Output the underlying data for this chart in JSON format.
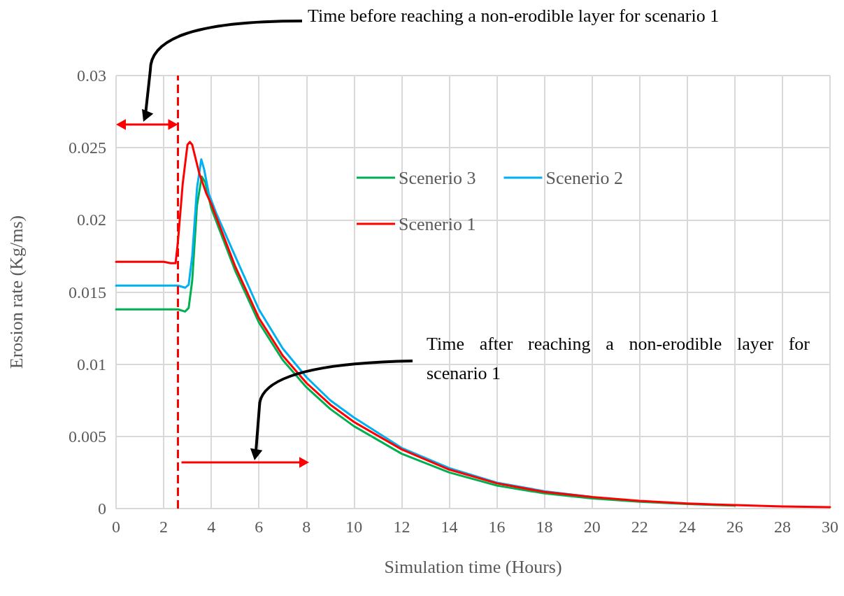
{
  "chart_data": {
    "type": "line",
    "xlabel": "Simulation time (Hours)",
    "ylabel": "Erosion rate (Kg/ms)",
    "xlim": [
      0,
      30
    ],
    "xticks": [
      0,
      2,
      4,
      6,
      8,
      10,
      12,
      14,
      16,
      18,
      20,
      22,
      24,
      26,
      28,
      30
    ],
    "ylim": [
      0,
      0.03
    ],
    "yticks": [
      0,
      0.005,
      0.01,
      0.015,
      0.02,
      0.025,
      0.03
    ],
    "grid": true,
    "legend": "top",
    "marker": "none",
    "line_style": "solid",
    "series": [
      {
        "name": "Scenerio 3",
        "color": "#00b050",
        "x": [
          0,
          2.6,
          2.9,
          3.05,
          3.2,
          3.4,
          3.6,
          3.75,
          4,
          5,
          6,
          7,
          8,
          9,
          10,
          12,
          14,
          16,
          18,
          20,
          22,
          24,
          26
        ],
        "values": [
          0.0138,
          0.0138,
          0.01365,
          0.0139,
          0.0158,
          0.021,
          0.023,
          0.0226,
          0.0208,
          0.0165,
          0.0129,
          0.0103,
          0.0084,
          0.0069,
          0.0057,
          0.0038,
          0.0025,
          0.0016,
          0.00105,
          0.0007,
          0.00047,
          0.00031,
          0.0002
        ]
      },
      {
        "name": "Scenerio 2",
        "color": "#00b0f0",
        "x": [
          0,
          2.6,
          2.9,
          3.05,
          3.2,
          3.4,
          3.58,
          3.7,
          3.9,
          4.2,
          5,
          6,
          7,
          8,
          9,
          10,
          12,
          14,
          16,
          18,
          20
        ],
        "values": [
          0.01545,
          0.01545,
          0.0153,
          0.0155,
          0.0175,
          0.0222,
          0.0242,
          0.0235,
          0.0218,
          0.0205,
          0.0175,
          0.0138,
          0.0111,
          0.0091,
          0.0075,
          0.0063,
          0.0042,
          0.0028,
          0.0018,
          0.0012,
          0.0008
        ]
      },
      {
        "name": "Scenerio 1",
        "color": "#ff0000",
        "x": [
          0,
          2,
          2.3,
          2.5,
          2.6,
          2.8,
          3.0,
          3.1,
          3.2,
          3.5,
          3.8,
          4,
          5,
          6,
          7,
          8,
          9,
          10,
          12,
          14,
          16,
          18,
          20,
          22,
          24,
          26,
          28,
          30
        ],
        "values": [
          0.0171,
          0.0171,
          0.017,
          0.017,
          0.0185,
          0.0225,
          0.0252,
          0.0254,
          0.0252,
          0.0232,
          0.0218,
          0.0211,
          0.0168,
          0.0132,
          0.0106,
          0.0087,
          0.0072,
          0.006,
          0.0041,
          0.0027,
          0.00175,
          0.00115,
          0.0008,
          0.00053,
          0.00035,
          0.00024,
          0.00015,
          0.0001
        ]
      }
    ],
    "ref_lines": [
      {
        "axis": "x",
        "value": 2.6,
        "color": "#ff0000",
        "line_style": "dashed"
      }
    ],
    "annotations": [
      "Time before reaching a non-erodible layer for scenario 1",
      "Time after reaching a non-erodible layer for scenario 1"
    ]
  }
}
